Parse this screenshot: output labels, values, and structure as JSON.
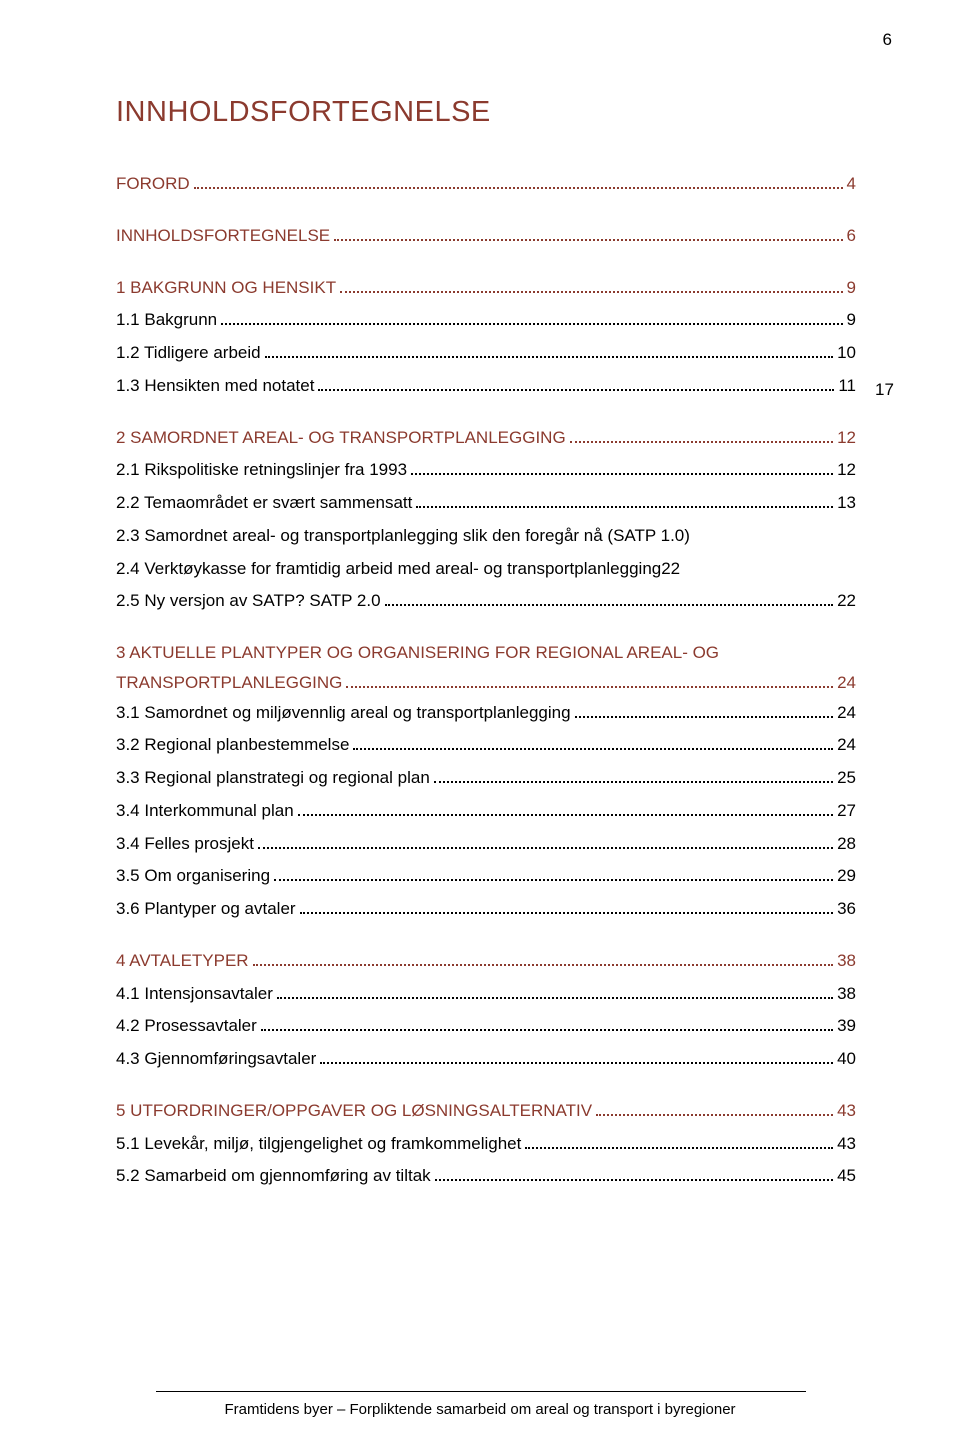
{
  "page_number_top": "6",
  "main_title": "INNHOLDSFORTEGNELSE",
  "right_column_note": "17",
  "footer": "Framtidens byer – Forpliktende samarbeid om areal og transport i byregioner",
  "toc": {
    "s0": {
      "label": "FORORD",
      "page": "4"
    },
    "s1": {
      "label": "INNHOLDSFORTEGNELSE",
      "page": "6"
    },
    "s2": {
      "label": "1   BAKGRUNN OG HENSIKT",
      "page": "9"
    },
    "s2_1": {
      "label": "1.1  Bakgrunn",
      "page": "9"
    },
    "s2_2": {
      "label": "1.2  Tidligere arbeid",
      "page": "10"
    },
    "s2_3": {
      "label": "1.3  Hensikten med notatet",
      "page": "11"
    },
    "s3": {
      "label": "2   SAMORDNET AREAL- OG TRANSPORTPLANLEGGING",
      "page": "12"
    },
    "s3_1": {
      "label": "2.1  Rikspolitiske retningslinjer fra 1993",
      "page": "12"
    },
    "s3_2": {
      "label": "2.2  Temaområdet er svært sammensatt",
      "page": "13"
    },
    "s3_3": {
      "label": "2.3  Samordnet areal- og transportplanlegging slik den foregår nå (SATP 1.0)"
    },
    "s3_4": {
      "label": "2.4  Verktøykasse for framtidig arbeid med areal- og transportplanlegging22"
    },
    "s3_5": {
      "label": "2.5  Ny versjon av SATP? SATP 2.0",
      "page": "22"
    },
    "s4_line1": "3   AKTUELLE PLANTYPER OG ORGANISERING FOR REGIONAL AREAL- OG",
    "s4_line2": {
      "label": "TRANSPORTPLANLEGGING",
      "page": "24"
    },
    "s4_1": {
      "label": "3.1  Samordnet og miljøvennlig areal og transportplanlegging",
      "page": "24"
    },
    "s4_2": {
      "label": "3.2  Regional planbestemmelse",
      "page": "24"
    },
    "s4_3": {
      "label": "3.3  Regional planstrategi og regional plan",
      "page": "25"
    },
    "s4_4": {
      "label": "3.4  Interkommunal plan",
      "page": "27"
    },
    "s4_5": {
      "label": "3.4  Felles prosjekt",
      "page": "28"
    },
    "s4_6": {
      "label": "3.5  Om organisering",
      "page": "29"
    },
    "s4_7": {
      "label": "3.6  Plantyper og avtaler",
      "page": "36"
    },
    "s5": {
      "label": "4   AVTALETYPER",
      "page": "38"
    },
    "s5_1": {
      "label": "4.1  Intensjonsavtaler",
      "page": "38"
    },
    "s5_2": {
      "label": "4.2  Prosessavtaler",
      "page": "39"
    },
    "s5_3": {
      "label": "4.3  Gjennomføringsavtaler",
      "page": "40"
    },
    "s6": {
      "label": "5   UTFORDRINGER/OPPGAVER OG LØSNINGSALTERNATIV",
      "page": "43"
    },
    "s6_1": {
      "label": "5.1  Levekår, miljø, tilgjengelighet og framkommelighet",
      "page": "43"
    },
    "s6_2": {
      "label": "5.2  Samarbeid om gjennomføring av tiltak",
      "page": "45"
    }
  }
}
